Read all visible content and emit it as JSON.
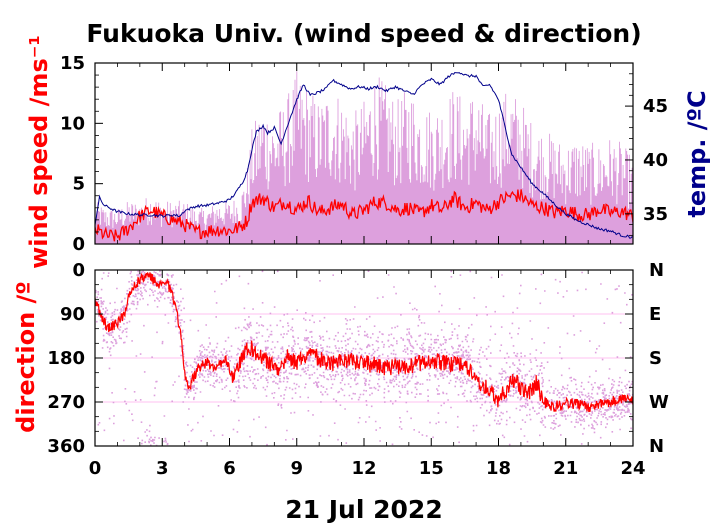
{
  "chart_data": [
    {
      "type": "line",
      "title": "Fukuoka Univ. (wind speed & direction)",
      "ylabel": "wind speed /ms⁻¹",
      "y2label": "temp. /ºC",
      "xlabel": "21 Jul 2022",
      "x_ticks": [
        "0",
        "3",
        "6",
        "9",
        "12",
        "15",
        "18",
        "21",
        "24"
      ],
      "y_ticks": [
        "0",
        "5",
        "10",
        "15"
      ],
      "y2_ticks": [
        "35",
        "40",
        "45"
      ],
      "xlim": [
        0,
        24
      ],
      "ylim": [
        0,
        15
      ],
      "y2lim": [
        32.2,
        49
      ],
      "colors": {
        "wind_mean": "#ff0000",
        "wind_gust": "#dda0dd",
        "temperature": "#00008b"
      },
      "series": [
        {
          "key": "wind_mean",
          "x": [
            0,
            0.5,
            1,
            1.5,
            2,
            2.5,
            3,
            3.5,
            4,
            4.5,
            5,
            5.5,
            6,
            6.5,
            6.8,
            7,
            7.5,
            8,
            8.5,
            9,
            9.5,
            10,
            10.5,
            11,
            11.5,
            12,
            12.5,
            13,
            13.5,
            14,
            14.5,
            15,
            15.5,
            16,
            16.5,
            17,
            17.5,
            18,
            18.5,
            19,
            19.5,
            20,
            20.5,
            21,
            21.5,
            22,
            22.5,
            23,
            23.5,
            24
          ],
          "values": [
            1.2,
            0.7,
            0.6,
            1.3,
            2.3,
            2.8,
            2.3,
            2.0,
            1.6,
            1.0,
            1.1,
            1.2,
            1.1,
            1.4,
            2.0,
            3.5,
            3.8,
            3.0,
            3.5,
            2.8,
            3.6,
            2.6,
            3.0,
            3.3,
            2.4,
            2.8,
            3.5,
            3.4,
            2.8,
            3.0,
            2.5,
            3.2,
            2.8,
            3.8,
            3.0,
            3.4,
            2.8,
            3.5,
            4.0,
            4.0,
            3.2,
            3.0,
            2.6,
            2.8,
            2.5,
            2.4,
            2.9,
            2.6,
            2.7,
            2.3
          ]
        },
        {
          "key": "wind_gust",
          "x": [
            0,
            0.5,
            1,
            1.5,
            2,
            2.5,
            3,
            3.5,
            4,
            4.5,
            5,
            5.5,
            6,
            6.5,
            6.8,
            7,
            7.5,
            8,
            8.5,
            9,
            9.5,
            10,
            10.5,
            11,
            11.5,
            12,
            12.5,
            13,
            13.5,
            14,
            14.5,
            15,
            15.5,
            16,
            16.5,
            17,
            17.5,
            18,
            18.5,
            19,
            19.5,
            20,
            20.5,
            21,
            21.5,
            22,
            22.5,
            23,
            23.5,
            24
          ],
          "values": [
            3.0,
            2.5,
            2.5,
            3.0,
            3.0,
            3.5,
            3.0,
            3.0,
            3.0,
            2.5,
            2.5,
            3.0,
            3.0,
            3.5,
            5.5,
            8.0,
            10.0,
            9.0,
            10.0,
            12.0,
            11.0,
            10.0,
            11.0,
            10.5,
            9.0,
            10.0,
            12.0,
            11.0,
            10.0,
            11.0,
            10.0,
            9.5,
            10.0,
            11.0,
            10.0,
            11.0,
            9.0,
            10.0,
            11.0,
            10.0,
            8.5,
            8.0,
            7.5,
            7.0,
            7.5,
            7.0,
            7.0,
            7.5,
            7.0,
            6.0
          ]
        },
        {
          "key": "temperature",
          "x": [
            0,
            0.2,
            0.4,
            0.7,
            1,
            1.5,
            2,
            2.5,
            3,
            3.5,
            3.8,
            4,
            4.5,
            5,
            5.5,
            6,
            6.3,
            6.6,
            6.8,
            7,
            7.2,
            7.5,
            7.7,
            8,
            8.3,
            8.6,
            9,
            9.3,
            9.6,
            10,
            10.3,
            10.6,
            11,
            11.4,
            11.8,
            12.2,
            12.6,
            13,
            13.4,
            13.8,
            14.2,
            14.6,
            15,
            15.4,
            15.8,
            16.2,
            16.6,
            17,
            17.3,
            17.6,
            18,
            18.3,
            18.6,
            19,
            19.5,
            20,
            20.5,
            21,
            21.5,
            22,
            22.5,
            23,
            23.5,
            24
          ],
          "values": [
            34.0,
            36.5,
            35.8,
            35.5,
            35.2,
            35.0,
            34.9,
            34.9,
            34.8,
            34.9,
            34.8,
            35.3,
            35.7,
            35.8,
            36.0,
            36.3,
            37.0,
            38.0,
            39.0,
            41.0,
            42.6,
            43.2,
            42.5,
            43.0,
            41.5,
            43.3,
            45.6,
            47.0,
            46.0,
            46.3,
            46.6,
            47.4,
            47.0,
            46.6,
            46.8,
            46.6,
            46.8,
            46.4,
            46.8,
            46.4,
            46.1,
            47.0,
            47.5,
            47.0,
            47.8,
            48.2,
            47.8,
            47.8,
            46.8,
            47.0,
            45.6,
            43.0,
            40.5,
            39.3,
            37.8,
            36.9,
            35.9,
            35.0,
            34.4,
            34.0,
            33.6,
            33.4,
            33.0,
            32.8
          ]
        }
      ]
    },
    {
      "type": "scatter",
      "ylabel": "direction /º",
      "xlabel": "21 Jul 2022",
      "x_ticks": [
        "0",
        "3",
        "6",
        "9",
        "12",
        "15",
        "18",
        "21",
        "24"
      ],
      "y_ticks": [
        "0",
        "90",
        "180",
        "270",
        "360"
      ],
      "y2_ticks": [
        "N",
        "E",
        "S",
        "W",
        "N"
      ],
      "xlim": [
        0,
        24
      ],
      "ylim": [
        360,
        0
      ],
      "colors": {
        "mean_direction": "#ff0000",
        "scatter": "#dda0dd"
      },
      "series": [
        {
          "key": "mean_direction",
          "x": [
            0,
            0.3,
            0.6,
            1,
            1.3,
            1.6,
            2,
            2.4,
            2.8,
            3.2,
            3.5,
            3.8,
            4,
            4.2,
            4.6,
            5,
            5.4,
            5.8,
            6.2,
            6.6,
            7,
            7.4,
            7.8,
            8.2,
            8.6,
            9,
            9.5,
            10,
            10.5,
            11,
            12,
            13,
            14,
            15,
            15.5,
            16,
            16.5,
            17,
            17.5,
            17.8,
            18,
            18.3,
            18.6,
            19,
            19.4,
            19.7,
            20,
            20.5,
            21,
            22,
            23,
            23.6,
            24
          ],
          "values": [
            60,
            100,
            120,
            110,
            90,
            40,
            20,
            10,
            30,
            20,
            60,
            120,
            210,
            240,
            200,
            190,
            200,
            180,
            220,
            170,
            160,
            180,
            190,
            210,
            175,
            190,
            170,
            180,
            195,
            185,
            190,
            200,
            195,
            185,
            190,
            195,
            190,
            230,
            240,
            260,
            265,
            250,
            220,
            240,
            250,
            230,
            270,
            280,
            270,
            280,
            270,
            260,
            270
          ]
        }
      ]
    }
  ]
}
